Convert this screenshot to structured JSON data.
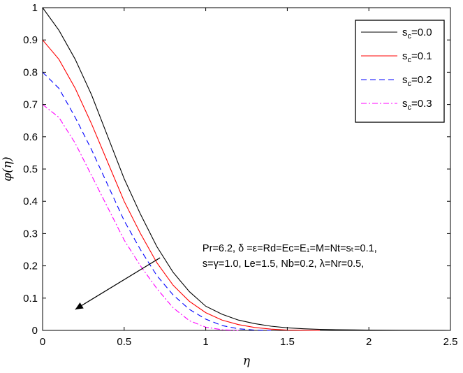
{
  "chart_data": {
    "type": "line",
    "title": "",
    "xlabel": "η",
    "ylabel": "φ(η)",
    "xlim": [
      0,
      2.5
    ],
    "ylim": [
      0,
      1
    ],
    "xticks": [
      "0",
      "0.5",
      "1",
      "1.5",
      "2",
      "2.5"
    ],
    "yticks": [
      "0",
      "0.1",
      "0.2",
      "0.3",
      "0.4",
      "0.5",
      "0.6",
      "0.7",
      "0.8",
      "0.9",
      "1"
    ],
    "grid": false,
    "legend_position": "top-right",
    "series": [
      {
        "name": "s_c=0.0",
        "sub": "c",
        "legend_prefix": "s",
        "legend_value": "=0.0",
        "color": "#000000",
        "dash": "solid",
        "x": [
          0,
          0.1,
          0.2,
          0.3,
          0.4,
          0.5,
          0.6,
          0.7,
          0.8,
          0.9,
          1.0,
          1.1,
          1.2,
          1.3,
          1.4,
          1.5,
          1.6,
          1.7,
          1.8,
          2.0,
          2.2,
          2.5
        ],
        "y": [
          1.0,
          0.93,
          0.84,
          0.73,
          0.6,
          0.47,
          0.36,
          0.26,
          0.18,
          0.12,
          0.075,
          0.05,
          0.032,
          0.021,
          0.013,
          0.008,
          0.005,
          0.003,
          0.002,
          0.001,
          0.0005,
          0.0
        ]
      },
      {
        "name": "s_c=0.1",
        "sub": "c",
        "legend_prefix": "s",
        "legend_value": "=0.1",
        "color": "#ff0000",
        "dash": "solid",
        "x": [
          0,
          0.1,
          0.2,
          0.3,
          0.4,
          0.5,
          0.6,
          0.7,
          0.8,
          0.9,
          1.0,
          1.1,
          1.2,
          1.3,
          1.4,
          1.5,
          1.6,
          1.7
        ],
        "y": [
          0.9,
          0.84,
          0.75,
          0.64,
          0.52,
          0.4,
          0.3,
          0.21,
          0.14,
          0.09,
          0.055,
          0.032,
          0.018,
          0.009,
          0.004,
          0.001,
          0.0003,
          0.0
        ]
      },
      {
        "name": "s_c=0.2",
        "sub": "c",
        "legend_prefix": "s",
        "legend_value": "=0.2",
        "color": "#0000ff",
        "dash": "dashed",
        "x": [
          0,
          0.1,
          0.2,
          0.3,
          0.4,
          0.5,
          0.6,
          0.7,
          0.8,
          0.9,
          1.0,
          1.1,
          1.2,
          1.3,
          1.4
        ],
        "y": [
          0.8,
          0.75,
          0.66,
          0.56,
          0.45,
          0.34,
          0.25,
          0.17,
          0.11,
          0.065,
          0.035,
          0.015,
          0.005,
          0.001,
          0.0
        ]
      },
      {
        "name": "s_c=0.3",
        "sub": "c",
        "legend_prefix": "s",
        "legend_value": "=0.3",
        "color": "#ff00ff",
        "dash": "dashdot",
        "x": [
          0,
          0.1,
          0.2,
          0.3,
          0.4,
          0.5,
          0.6,
          0.7,
          0.8,
          0.9,
          1.0,
          1.1,
          1.2
        ],
        "y": [
          0.7,
          0.66,
          0.58,
          0.48,
          0.38,
          0.28,
          0.2,
          0.13,
          0.07,
          0.03,
          0.01,
          0.002,
          0.0
        ]
      }
    ],
    "annotation": {
      "line1": "Pr=6.2, δ =ε=Rd=Ec=E₁=M=Nt=sₜ=0.1,",
      "line2": "s=γ=1.0, Le=1.5, Nb=0.2, λ=Nr=0.5,",
      "arrow_from": [
        0.72,
        0.225
      ],
      "arrow_to": [
        0.2,
        0.065
      ],
      "anchor": [
        0.98,
        0.245
      ]
    }
  }
}
